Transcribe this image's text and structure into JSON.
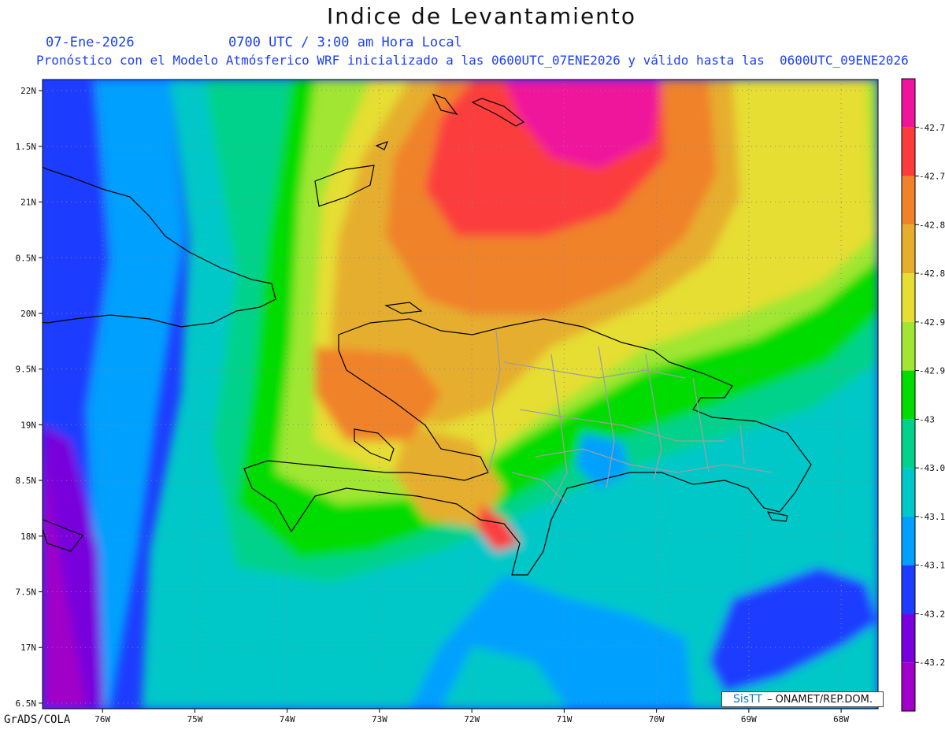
{
  "header": {
    "title": "Indice de Levantamiento",
    "date": "07-Ene-2026",
    "time": "0700 UTC / 3:00 am Hora Local",
    "subtitle": "Pronóstico con el Modelo Atmósferico WRF inicializado a las 0600UTC_07ENE2026 y válido hasta las  0600UTC_09ENE2026"
  },
  "credit": "GrADS/COLA",
  "logo": {
    "mark": "SisTT",
    "text": "– ONAMET/REP.DOM."
  },
  "map": {
    "lon_range": [
      -76.65,
      -67.6
    ],
    "lat_range": [
      16.45,
      22.1
    ],
    "lat_ticks": [
      "22N",
      "1.5N",
      "21N",
      "0.5N",
      "20N",
      "9.5N",
      "19N",
      "8.5N",
      "18N",
      "7.5N",
      "17N",
      "6.5N"
    ],
    "lat_values": [
      22,
      21.5,
      21,
      20.5,
      20,
      19.5,
      19,
      18.5,
      18,
      17.5,
      17,
      16.5
    ],
    "lon_ticks": [
      "76W",
      "75W",
      "74W",
      "73W",
      "72W",
      "71W",
      "70W",
      "69W",
      "68W"
    ],
    "lon_values": [
      -76,
      -75,
      -74,
      -73,
      -72,
      -71,
      -70,
      -69,
      -68
    ]
  },
  "legend": {
    "labels": [
      "-42.7",
      "-42.7",
      "-42.8",
      "-42.8",
      "-42.9",
      "-42.9",
      "-43",
      "-43.0",
      "-43.1",
      "-43.1",
      "-43.2",
      "-43.2"
    ],
    "colors": [
      "#f0149c",
      "#fc3c3c",
      "#f0822c",
      "#e6ae2e",
      "#e6de33",
      "#a0e632",
      "#00dc00",
      "#00d28c",
      "#00c8c8",
      "#00a0ff",
      "#1e3cff",
      "#7800dc",
      "#a000c8"
    ]
  }
}
